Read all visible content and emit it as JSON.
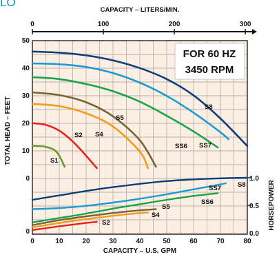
{
  "corner_mark": "LO",
  "chart_data": {
    "type": "line",
    "panel": {
      "background": "#fbeee3",
      "grid": true
    },
    "top_axis": {
      "label": "CAPACITY – LITERS/MIN.",
      "ticks": [
        0,
        100,
        200,
        300
      ],
      "range": [
        0,
        302.8
      ]
    },
    "x_axis": {
      "label": "CAPACITY – U.S. GPM",
      "ticks": [
        0,
        10,
        20,
        30,
        40,
        50,
        60,
        70,
        80
      ],
      "range": [
        0,
        80
      ]
    },
    "y_left": {
      "label": "TOTAL HEAD – FEET",
      "head_ticks": [
        50,
        40,
        30,
        20,
        10,
        0
      ],
      "power_ticks": [
        0
      ]
    },
    "y_right": {
      "label": "HORSEPOWER",
      "ticks": [
        "1.0",
        "0.5",
        "0.0"
      ],
      "values": [
        1.0,
        0.5,
        0.0
      ]
    },
    "annotation": [
      "FOR 60 HZ",
      "3450 RPM"
    ],
    "head_series": [
      {
        "name": "S1",
        "color": "#6b9a2e",
        "x": [
          0,
          4,
          8,
          10,
          12
        ],
        "y": [
          11.6,
          11.4,
          10.2,
          8,
          4
        ]
      },
      {
        "name": "S2",
        "color": "#e8231f",
        "x": [
          0,
          5,
          10,
          15,
          20,
          24
        ],
        "y": [
          19.8,
          19.2,
          17.1,
          13.2,
          8,
          3.5
        ]
      },
      {
        "name": "S4",
        "color": "#f39b1d",
        "x": [
          0,
          10,
          20,
          30,
          40,
          43
        ],
        "y": [
          26.8,
          26,
          23.4,
          18.6,
          9.5,
          3.5
        ]
      },
      {
        "name": "S5",
        "color": "#7a6232",
        "x": [
          0,
          10,
          20,
          30,
          40,
          46
        ],
        "y": [
          31,
          30,
          27.4,
          22.3,
          13.6,
          4
        ]
      },
      {
        "name": "SS6",
        "color": "#1aa34a",
        "x": [
          0,
          10,
          20,
          30,
          40,
          50,
          60,
          69
        ],
        "y": [
          36.5,
          35.8,
          34,
          31.4,
          27.6,
          22.5,
          16.8,
          11
        ]
      },
      {
        "name": "SS7",
        "color": "#1b9ad6",
        "x": [
          0,
          10,
          20,
          30,
          40,
          50,
          60,
          70,
          73
        ],
        "y": [
          41.5,
          41.2,
          40.2,
          38,
          34.5,
          29.7,
          23.6,
          16.5,
          14
        ]
      },
      {
        "name": "S8",
        "color": "#0d3f7a",
        "x": [
          0,
          10,
          20,
          30,
          40,
          50,
          60,
          70,
          80
        ],
        "y": [
          45.8,
          45.4,
          44.4,
          42.6,
          39.8,
          35.8,
          29.9,
          21.5,
          11.5
        ]
      }
    ],
    "hp_series": [
      {
        "name": "S2",
        "color": "#e8231f",
        "x": [
          0,
          10,
          20,
          24
        ],
        "y": [
          0.05,
          0.12,
          0.18,
          0.2
        ]
      },
      {
        "name": "S4",
        "color": "#f39b1d",
        "x": [
          0,
          10,
          20,
          30,
          40,
          43
        ],
        "y": [
          0.1,
          0.18,
          0.25,
          0.31,
          0.36,
          0.37
        ]
      },
      {
        "name": "S5",
        "color": "#7a6232",
        "x": [
          0,
          10,
          20,
          30,
          40,
          46
        ],
        "y": [
          0.14,
          0.23,
          0.3,
          0.36,
          0.41,
          0.43
        ]
      },
      {
        "name": "SS6",
        "color": "#1aa34a",
        "x": [
          0,
          10,
          20,
          30,
          40,
          50,
          60,
          69
        ],
        "y": [
          0.19,
          0.27,
          0.35,
          0.44,
          0.52,
          0.6,
          0.67,
          0.72
        ]
      },
      {
        "name": "SS7",
        "color": "#1b9ad6",
        "x": [
          0,
          10,
          20,
          30,
          40,
          50,
          60,
          70,
          72
        ],
        "y": [
          0.43,
          0.45,
          0.49,
          0.55,
          0.62,
          0.7,
          0.79,
          0.88,
          0.9
        ]
      },
      {
        "name": "S8",
        "color": "#0d3f7a",
        "x": [
          0,
          10,
          20,
          30,
          40,
          50,
          60,
          70,
          80
        ],
        "y": [
          0.6,
          0.68,
          0.76,
          0.83,
          0.89,
          0.94,
          0.97,
          0.99,
          1.0
        ]
      }
    ]
  }
}
